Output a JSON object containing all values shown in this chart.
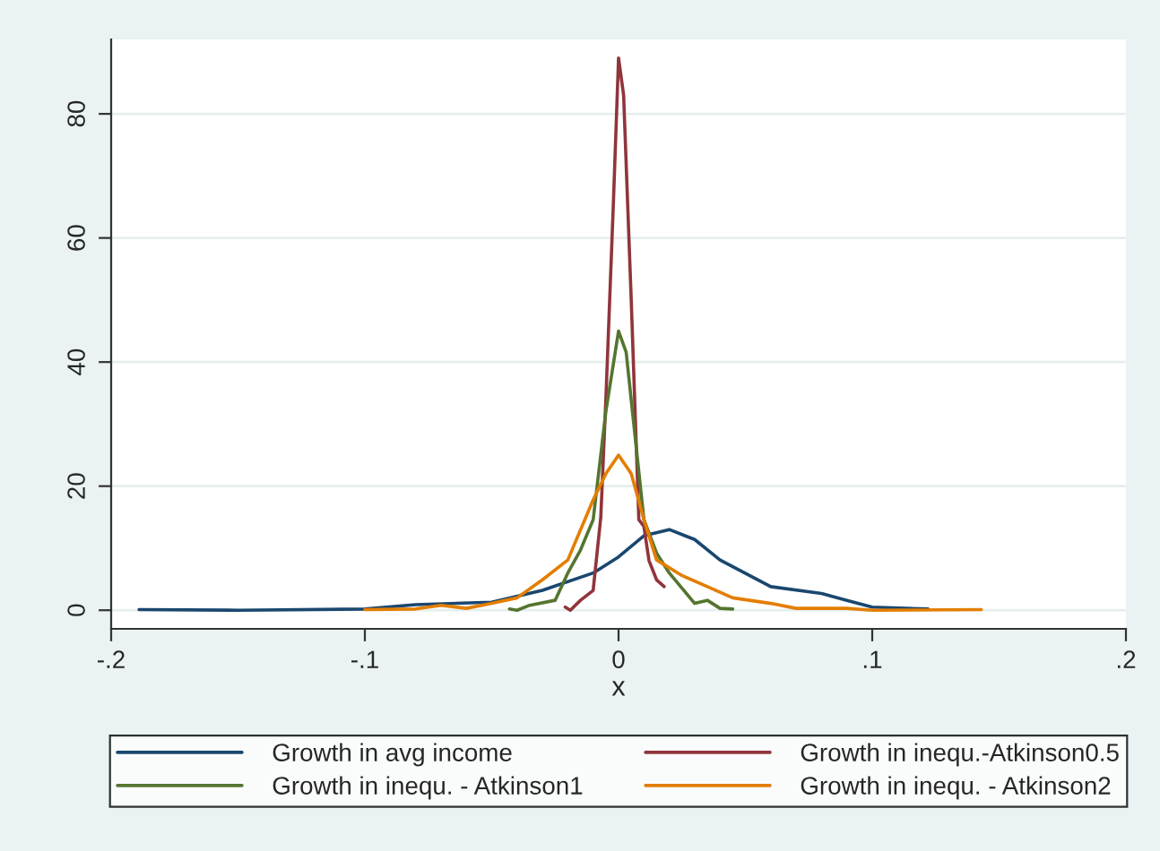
{
  "chart_data": {
    "type": "line",
    "xlabel": "x",
    "xlim": [
      -0.2,
      0.2
    ],
    "ylim": [
      -3,
      92
    ],
    "xticks": [
      {
        "value": -0.2,
        "label": "-.2"
      },
      {
        "value": -0.1,
        "label": "-.1"
      },
      0,
      {
        "value": 0.1,
        "label": ".1"
      },
      {
        "value": 0.2,
        "label": ".2"
      }
    ],
    "yticks": [
      0,
      20,
      40,
      60,
      80
    ],
    "grid": "y",
    "legend": "bottom",
    "marker": "none",
    "line_style": "solid",
    "series": [
      {
        "name": "Growth in avg income",
        "color": "#1a476f",
        "x": [
          -0.189,
          -0.15,
          -0.1,
          -0.08,
          -0.05,
          -0.03,
          -0.01,
          0,
          0.01,
          0.02,
          0.03,
          0.04,
          0.06,
          0.08,
          0.09,
          0.1,
          0.122
        ],
        "values": [
          0.1,
          0,
          0.2,
          0.9,
          1.3,
          3.2,
          6,
          8.6,
          12,
          13,
          11.4,
          8.1,
          3.8,
          2.7,
          1.6,
          0.5,
          0.2
        ]
      },
      {
        "name": "Growth in inequ.-Atkinson0.5",
        "color": "#90353b",
        "x": [
          -0.021,
          -0.019,
          -0.015,
          -0.01,
          -0.007,
          -0.005,
          -0.002,
          0,
          0.002,
          0.005,
          0.008,
          0.01,
          0.012,
          0.015,
          0.018
        ],
        "values": [
          0.5,
          0,
          1.6,
          3.2,
          15,
          34,
          66,
          89,
          83,
          50,
          14.6,
          13.5,
          8,
          4.9,
          3.8
        ]
      },
      {
        "name": "Growth in inequ. - Atkinson1",
        "color": "#55752f",
        "x": [
          -0.043,
          -0.04,
          -0.035,
          -0.025,
          -0.02,
          -0.015,
          -0.01,
          -0.005,
          0,
          0.003,
          0.006,
          0.01,
          0.015,
          0.02,
          0.03,
          0.035,
          0.04,
          0.045
        ],
        "values": [
          0.2,
          0,
          0.8,
          1.6,
          6,
          9.7,
          14.6,
          32,
          45,
          41.6,
          30,
          14.6,
          9.2,
          6,
          1.1,
          1.6,
          0.3,
          0.2
        ]
      },
      {
        "name": "Growth in inequ. - Atkinson2",
        "color": "#e37e00",
        "x": [
          -0.1,
          -0.08,
          -0.07,
          -0.06,
          -0.05,
          -0.04,
          -0.03,
          -0.02,
          -0.01,
          -0.005,
          0,
          0.005,
          0.01,
          0.015,
          0.025,
          0.035,
          0.045,
          0.06,
          0.07,
          0.09,
          0.1,
          0.143
        ],
        "values": [
          0.1,
          0.2,
          0.8,
          0.3,
          1.1,
          2,
          4.9,
          8.1,
          17.8,
          22,
          25,
          22,
          14.6,
          8.1,
          5.6,
          3.8,
          2,
          1.1,
          0.3,
          0.3,
          0,
          0.1
        ]
      }
    ]
  }
}
